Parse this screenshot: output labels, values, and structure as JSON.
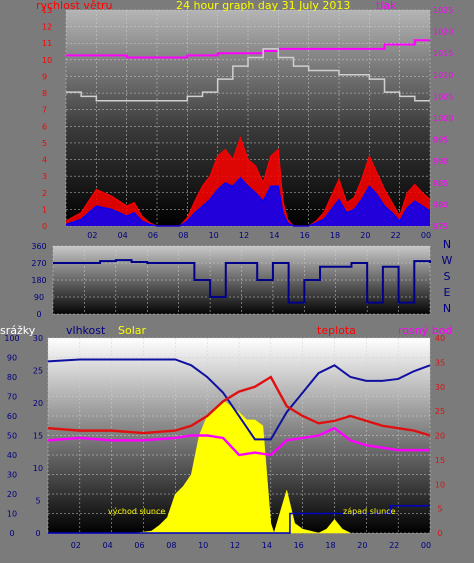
{
  "header": {
    "title": "24 hour graph day   31 July 2013",
    "left_label": "rychlost větru",
    "right_label": "tlak"
  },
  "colors": {
    "panel_bg": "#7b7b7b",
    "wind": "#ff0000",
    "gust": "#0000ff",
    "pressure": "#ff00ff",
    "gray_line": "#d0d0d0",
    "direction": "#00008b",
    "humidity": "#1010a0",
    "temperature": "#e01010",
    "dewpoint": "#ff00ff",
    "solar": "#ffff00",
    "rain": "#0000c0"
  },
  "chart_data": [
    {
      "type": "line",
      "title": "24 hour graph day   31 July 2013",
      "ylabel_left": "rychlost větru",
      "ylabel_right": "tlak",
      "ylim_left": [
        0,
        13
      ],
      "yticks_left": [
        "0",
        "1",
        "2",
        "3",
        "4",
        "5",
        "6",
        "7",
        "8",
        "9",
        "10",
        "11",
        "12",
        "13"
      ],
      "ylim_right": [
        975,
        1025
      ],
      "yticks_right": [
        "975",
        "980",
        "985",
        "990",
        "995",
        "1000",
        "1005",
        "1010",
        "1015",
        "1020",
        "1025"
      ],
      "xlim": [
        0,
        24
      ],
      "xticks": [
        "02",
        "04",
        "06",
        "08",
        "10",
        "12",
        "14",
        "16",
        "18",
        "20",
        "22",
        "00"
      ],
      "grid": true,
      "series": [
        {
          "axis": "left",
          "color": "#ff0000",
          "x": [
            0,
            1,
            2,
            3,
            4,
            4.5,
            5,
            5.5,
            6,
            7,
            7.5,
            8,
            8.5,
            9,
            9.5,
            10,
            10.5,
            11,
            11.5,
            12,
            12.5,
            13,
            13.5,
            14,
            14.3,
            14.6,
            15,
            15.5,
            16,
            16.5,
            17,
            17.5,
            18,
            18.5,
            19,
            19.5,
            20,
            20.5,
            21,
            21.5,
            22,
            22.5,
            23,
            23.5,
            24
          ],
          "values": [
            0.3,
            0.8,
            2.2,
            1.8,
            1.2,
            1.4,
            0.6,
            0.2,
            0,
            0,
            0,
            0.5,
            1.5,
            2.4,
            3.0,
            4.2,
            4.6,
            4.0,
            5.3,
            4.0,
            3.6,
            2.6,
            4.2,
            4.6,
            1.5,
            0.4,
            0,
            0,
            0,
            0.3,
            0.8,
            1.8,
            2.8,
            1.4,
            1.7,
            2.8,
            4.2,
            3.2,
            2.2,
            1.4,
            0.6,
            2.0,
            2.5,
            2.0,
            1.6
          ]
        },
        {
          "axis": "left",
          "color": "#0000ff",
          "x": [
            0,
            1,
            2,
            3,
            4,
            4.5,
            5,
            5.5,
            6,
            7,
            7.5,
            8,
            8.5,
            9,
            9.5,
            10,
            10.5,
            11,
            11.5,
            12,
            12.5,
            13,
            13.5,
            14,
            14.3,
            14.6,
            15,
            15.5,
            16,
            16.5,
            17,
            17.5,
            18,
            18.5,
            19,
            19.5,
            20,
            20.5,
            21,
            21.5,
            22,
            22.5,
            23,
            23.5,
            24
          ],
          "values": [
            0.1,
            0.4,
            1.2,
            1.0,
            0.6,
            0.8,
            0.3,
            0.1,
            0,
            0,
            0,
            0.3,
            0.8,
            1.2,
            1.6,
            2.2,
            2.6,
            2.4,
            2.9,
            2.4,
            2.0,
            1.5,
            2.4,
            2.4,
            0.8,
            0.2,
            0,
            0,
            0,
            0.2,
            0.4,
            1.0,
            1.6,
            0.8,
            1.0,
            1.6,
            2.4,
            1.9,
            1.2,
            0.8,
            0.3,
            1.1,
            1.5,
            1.2,
            0.9
          ]
        },
        {
          "axis": "right",
          "color": "#ff00ff",
          "x": [
            0,
            1,
            2,
            3,
            4,
            5,
            6,
            7,
            8,
            9,
            10,
            11,
            12,
            13,
            14,
            15,
            16,
            17,
            18,
            19,
            20,
            21,
            22,
            23,
            24
          ],
          "values": [
            1014.5,
            1014.5,
            1014.5,
            1014.5,
            1014,
            1014,
            1014,
            1014,
            1014.5,
            1014.5,
            1015,
            1015,
            1015,
            1015.5,
            1016,
            1016,
            1016,
            1016,
            1016,
            1016,
            1016,
            1017,
            1017,
            1018,
            1018
          ]
        },
        {
          "axis": "right",
          "color": "#d0d0d0",
          "x": [
            0,
            1,
            2,
            3,
            4,
            5,
            6,
            7,
            8,
            9,
            10,
            11,
            12,
            13,
            14,
            15,
            16,
            17,
            18,
            19,
            20,
            21,
            22,
            23,
            24
          ],
          "values": [
            1006,
            1005,
            1004,
            1004,
            1004,
            1004,
            1004,
            1004,
            1005,
            1006,
            1009,
            1012,
            1014,
            1016,
            1014,
            1012,
            1011,
            1011,
            1010,
            1010,
            1009,
            1006,
            1005,
            1004,
            1004
          ]
        }
      ]
    },
    {
      "type": "line",
      "title": "",
      "ylim": [
        0,
        360
      ],
      "yticks": [
        "0",
        "90",
        "180",
        "270",
        "360"
      ],
      "right_labels": [
        "N",
        "W",
        "S",
        "E",
        "N"
      ],
      "xlim": [
        0,
        24
      ],
      "series": [
        {
          "color": "#00008b",
          "x": [
            0,
            2,
            3,
            4,
            5,
            6,
            7,
            8,
            9,
            10,
            11,
            12,
            13,
            14,
            15,
            16,
            17,
            18,
            19,
            20,
            21,
            22,
            23,
            24
          ],
          "values": [
            270,
            270,
            280,
            285,
            275,
            270,
            270,
            270,
            180,
            90,
            270,
            270,
            180,
            270,
            60,
            180,
            250,
            250,
            270,
            60,
            250,
            60,
            280,
            270
          ]
        }
      ]
    },
    {
      "type": "line",
      "title": "",
      "header_labels": [
        "srážky",
        "vlhkost",
        "Solar",
        "teplota",
        "rosný bod"
      ],
      "ylim_left": [
        0,
        100
      ],
      "yticks_left": [
        "0",
        "10",
        "20",
        "30",
        "40",
        "50",
        "60",
        "70",
        "80",
        "90",
        "100"
      ],
      "ylim_humidity": [
        0,
        30
      ],
      "yticks_humidity": [
        "0",
        "5",
        "10",
        "15",
        "20",
        "25",
        "30"
      ],
      "ylim_right": [
        0,
        40
      ],
      "yticks_right": [
        "0",
        "5",
        "10",
        "15",
        "20",
        "25",
        "30",
        "35",
        "40"
      ],
      "xlim": [
        0,
        24
      ],
      "xticks": [
        "02",
        "04",
        "06",
        "08",
        "10",
        "12",
        "14",
        "16",
        "18",
        "20",
        "22",
        "00"
      ],
      "annotations": [
        "východ slunce",
        "západ slunce"
      ],
      "series": [
        {
          "name": "vlhkost",
          "axis": "left",
          "color": "#1010a0",
          "x": [
            0,
            2,
            4,
            6,
            8,
            9,
            10,
            11,
            12,
            13,
            14,
            15,
            16,
            17,
            18,
            19,
            20,
            21,
            22,
            23,
            24
          ],
          "values": [
            88,
            89,
            89,
            89,
            89,
            86,
            80,
            72,
            60,
            48,
            48,
            62,
            72,
            82,
            86,
            80,
            78,
            78,
            79,
            83,
            86
          ]
        },
        {
          "name": "teplota",
          "axis": "right",
          "color": "#e01010",
          "x": [
            0,
            2,
            4,
            6,
            8,
            9,
            10,
            11,
            12,
            13,
            14,
            15,
            16,
            17,
            18,
            19,
            20,
            21,
            22,
            23,
            24
          ],
          "values": [
            21.5,
            21,
            21,
            20.5,
            21,
            22,
            24,
            27,
            29,
            30,
            32,
            26,
            24,
            22.5,
            23,
            24,
            23,
            22,
            21.5,
            21,
            20
          ]
        },
        {
          "name": "rosný bod",
          "axis": "right",
          "color": "#ff00ff",
          "x": [
            0,
            2,
            4,
            6,
            8,
            9,
            10,
            11,
            12,
            13,
            14,
            15,
            16,
            17,
            18,
            19,
            20,
            21,
            22,
            23,
            24
          ],
          "values": [
            19,
            19.5,
            19,
            19,
            19.5,
            20,
            20,
            19.5,
            16,
            16.5,
            16,
            19,
            19.5,
            20,
            21.5,
            19,
            18,
            17.5,
            17,
            17,
            17
          ]
        },
        {
          "name": "Solar",
          "axis": "left",
          "color": "#ffff00",
          "x": [
            5.5,
            6.5,
            7,
            7.5,
            8,
            8.5,
            9,
            9.5,
            10,
            11,
            12,
            12.5,
            13,
            13.5,
            14,
            14.2,
            15,
            15.5,
            16,
            17,
            17.5,
            18,
            18.5,
            19
          ],
          "values": [
            0,
            1,
            4,
            8,
            20,
            24,
            30,
            50,
            60,
            68,
            62,
            58,
            58,
            55,
            5,
            0,
            22,
            5,
            2,
            0,
            2,
            7,
            2,
            0
          ]
        },
        {
          "name": "srážky",
          "axis": "left",
          "color": "#0000c0",
          "x": [
            0,
            15,
            15.2,
            21,
            21.5,
            24
          ],
          "values": [
            0,
            0,
            10,
            10,
            14,
            14
          ]
        }
      ]
    }
  ]
}
